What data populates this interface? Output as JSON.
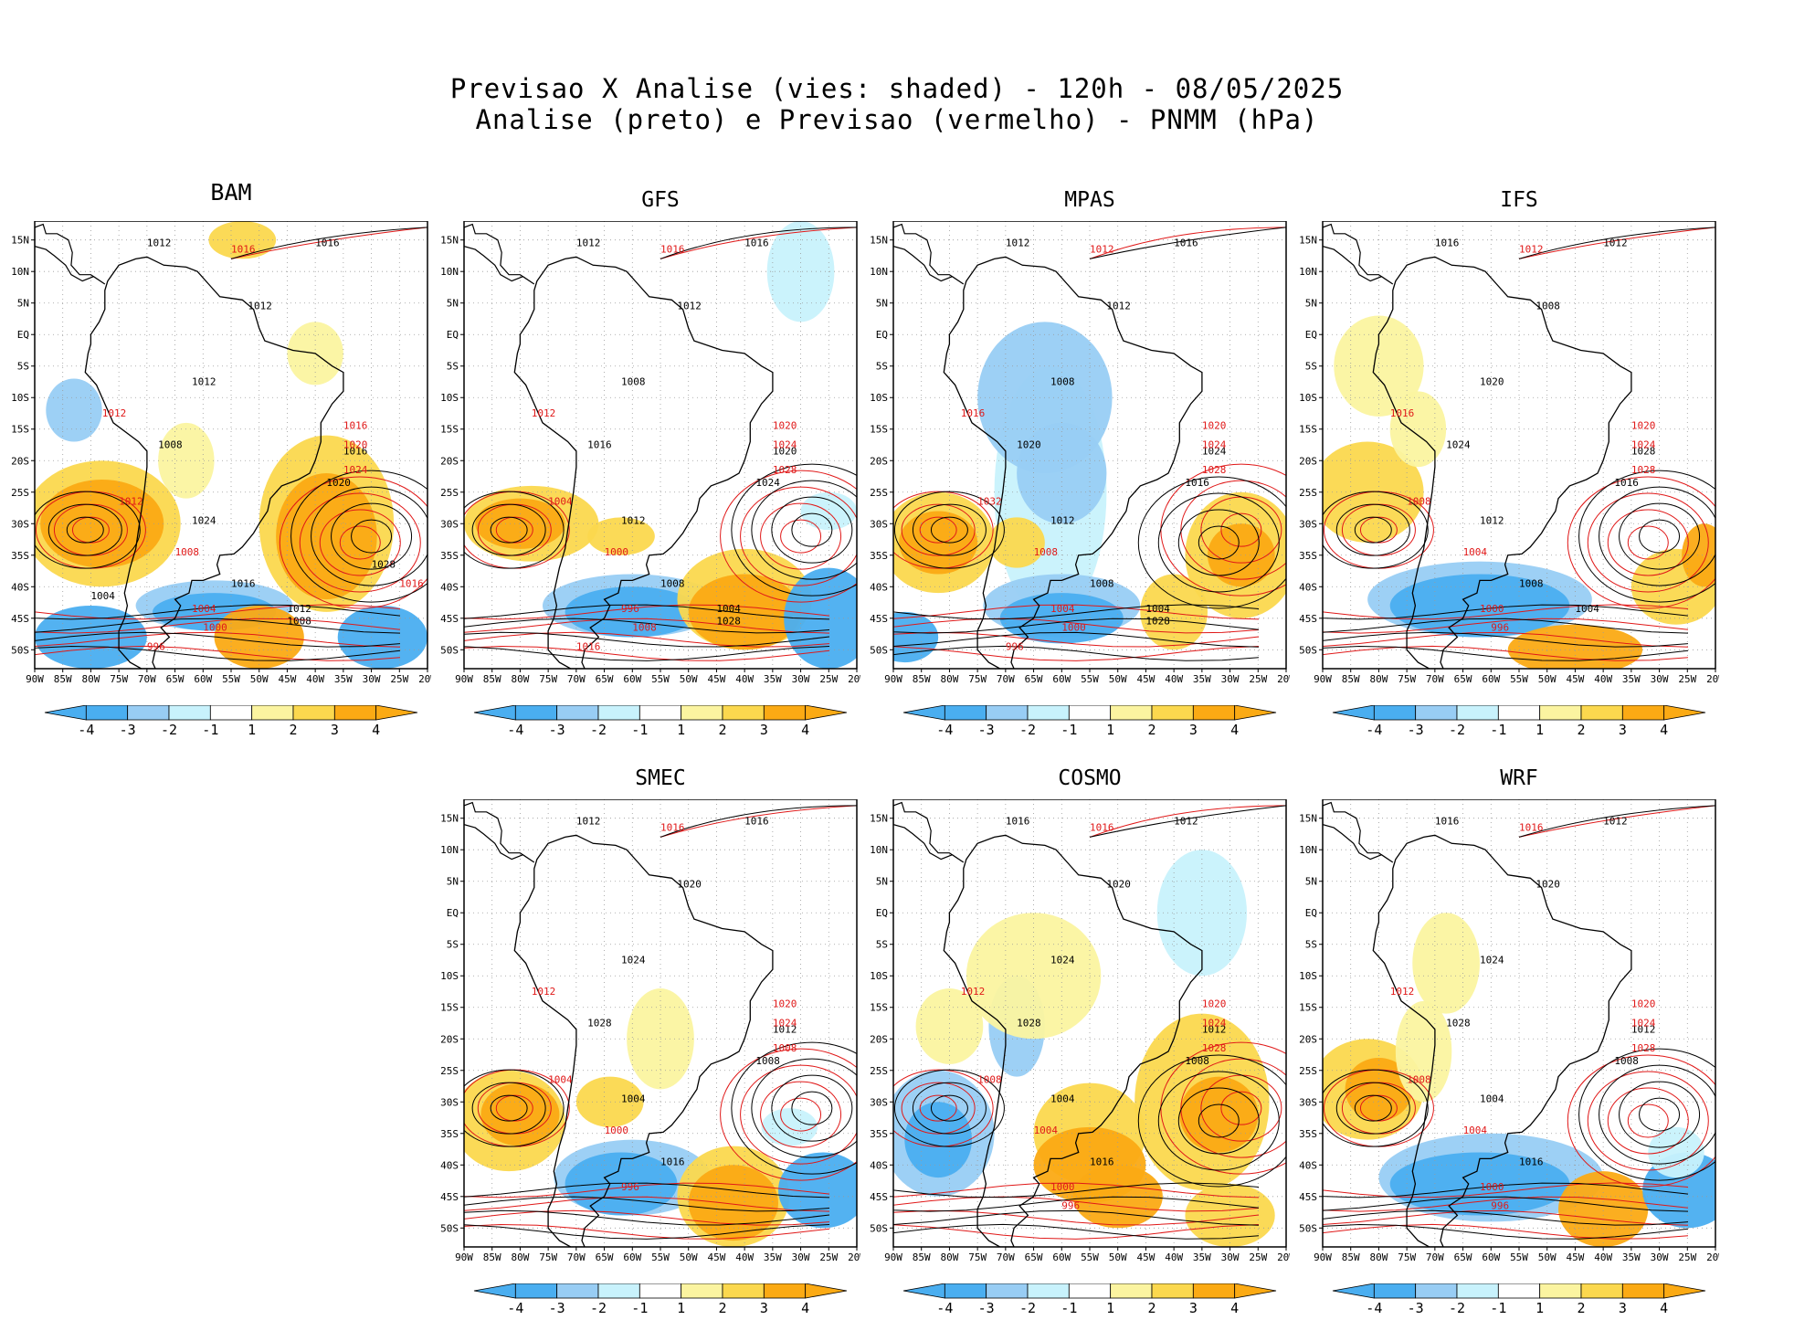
{
  "title_line1": "Previsao X Analise (vies: shaded) - 120h - 08/05/2025",
  "title_line2": "Analise (preto) e Previsao (vermelho) - PNMM (hPa)",
  "colors": {
    "neg4": "#4aaef0",
    "neg3": "#98cdf4",
    "neg2": "#c8f2fc",
    "pos2": "#fbf4a0",
    "pos3": "#fbd84e",
    "pos4": "#fbaa14",
    "analysis": "#000000",
    "forecast": "#e01818",
    "coast": "#000000"
  },
  "lat_labels": [
    "15N",
    "10N",
    "5N",
    "EQ",
    "5S",
    "10S",
    "15S",
    "20S",
    "25S",
    "30S",
    "35S",
    "40S",
    "45S",
    "50S"
  ],
  "lon_labels": [
    "90W",
    "85W",
    "80W",
    "75W",
    "70W",
    "65W",
    "60W",
    "55W",
    "50W",
    "45W",
    "40W",
    "35W",
    "30W",
    "25W",
    "20W"
  ],
  "colorbar_labels": [
    "-4",
    "-3",
    "-2",
    "-1",
    "1",
    "2",
    "3",
    "4"
  ],
  "panels": [
    {
      "model": "BAM",
      "analysis_labels": [
        "1012",
        "1016",
        "1012",
        "1012",
        "1008",
        "1016",
        "1020",
        "1024",
        "1016",
        "1012",
        "1008",
        "1004",
        "1028"
      ],
      "forecast_labels": [
        "1016",
        "1012",
        "1016",
        "1020",
        "1024",
        "1012",
        "1008",
        "1004",
        "1000",
        "996",
        "1016"
      ]
    },
    {
      "model": "GFS",
      "analysis_labels": [
        "1012",
        "1016",
        "1012",
        "1008",
        "1016",
        "1020",
        "1024",
        "1012",
        "1008",
        "1004",
        "1028"
      ],
      "forecast_labels": [
        "1016",
        "1012",
        "1020",
        "1024",
        "1028",
        "1004",
        "1000",
        "996",
        "1008",
        "1016"
      ]
    },
    {
      "model": "MPAS",
      "analysis_labels": [
        "1012",
        "1016",
        "1012",
        "1008",
        "1020",
        "1024",
        "1016",
        "1012",
        "1008",
        "1004",
        "1028"
      ],
      "forecast_labels": [
        "1012",
        "1016",
        "1020",
        "1024",
        "1028",
        "1032",
        "1008",
        "1004",
        "1000",
        "996"
      ]
    },
    {
      "model": "IFS",
      "analysis_labels": [
        "1016",
        "1012",
        "1008",
        "1020",
        "1024",
        "1028",
        "1016",
        "1012",
        "1008",
        "1004"
      ],
      "forecast_labels": [
        "1012",
        "1016",
        "1020",
        "1024",
        "1028",
        "1008",
        "1004",
        "1000",
        "996"
      ]
    },
    {
      "model": "SMEC",
      "analysis_labels": [
        "1012",
        "1016",
        "1020",
        "1024",
        "1028",
        "1012",
        "1008",
        "1004",
        "1016"
      ],
      "forecast_labels": [
        "1016",
        "1012",
        "1020",
        "1024",
        "1008",
        "1004",
        "1000",
        "996"
      ]
    },
    {
      "model": "COSMO",
      "analysis_labels": [
        "1016",
        "1012",
        "1020",
        "1024",
        "1028",
        "1012",
        "1008",
        "1004",
        "1016"
      ],
      "forecast_labels": [
        "1016",
        "1012",
        "1020",
        "1024",
        "1028",
        "1008",
        "1004",
        "1000",
        "996"
      ]
    },
    {
      "model": "WRF",
      "analysis_labels": [
        "1016",
        "1012",
        "1020",
        "1024",
        "1028",
        "1012",
        "1008",
        "1004",
        "1016"
      ],
      "forecast_labels": [
        "1016",
        "1012",
        "1020",
        "1024",
        "1028",
        "1008",
        "1004",
        "1000",
        "996"
      ]
    }
  ]
}
